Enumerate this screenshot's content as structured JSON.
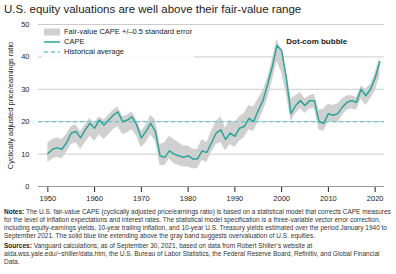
{
  "chart_data": {
    "type": "line",
    "title": "U.S. equity valuations are well above their fair-value range",
    "ylabel": "Cyclically adjusted price/earnings ratio",
    "x": [
      1950,
      1951,
      1952,
      1953,
      1954,
      1955,
      1956,
      1957,
      1958,
      1959,
      1960,
      1961,
      1962,
      1963,
      1964,
      1965,
      1966,
      1967,
      1968,
      1969,
      1970,
      1971,
      1972,
      1973,
      1974,
      1975,
      1976,
      1977,
      1978,
      1979,
      1980,
      1981,
      1982,
      1983,
      1984,
      1985,
      1986,
      1987,
      1988,
      1989,
      1990,
      1991,
      1992,
      1993,
      1994,
      1995,
      1996,
      1997,
      1998,
      1999,
      2000,
      2001,
      2002,
      2003,
      2004,
      2005,
      2006,
      2007,
      2008,
      2009,
      2010,
      2011,
      2012,
      2013,
      2014,
      2015,
      2016,
      2017,
      2018,
      2019,
      2020,
      2021
    ],
    "band": {
      "name": "Fair-value CAPE +/–0.5 standard error",
      "color": "#d0d0d0",
      "lower": [
        7.5,
        8.5,
        9.0,
        8.5,
        10.5,
        13.0,
        13.5,
        11.5,
        13.5,
        15.5,
        14.0,
        16.0,
        14.5,
        16.0,
        17.5,
        18.5,
        16.0,
        16.5,
        17.5,
        15.5,
        12.0,
        13.5,
        16.0,
        14.0,
        6.5,
        6.5,
        8.5,
        7.0,
        6.5,
        6.0,
        6.0,
        5.5,
        5.5,
        8.0,
        7.5,
        10.5,
        13.0,
        13.5,
        11.0,
        13.0,
        12.0,
        14.0,
        15.0,
        17.5,
        17.0,
        20.0,
        23.0,
        27.0,
        32.5,
        38.5,
        35.0,
        28.5,
        20.0,
        22.5,
        24.0,
        22.5,
        24.0,
        24.0,
        17.5,
        17.0,
        20.0,
        20.0,
        19.5,
        22.0,
        23.5,
        24.0,
        23.5,
        27.0,
        25.0,
        27.0,
        29.5,
        34.0
      ],
      "upper": [
        13.5,
        14.5,
        15.0,
        14.5,
        16.0,
        18.5,
        19.0,
        17.0,
        19.0,
        21.0,
        19.5,
        21.5,
        20.5,
        22.0,
        23.5,
        24.5,
        21.5,
        22.0,
        23.0,
        20.5,
        17.0,
        19.0,
        22.0,
        20.5,
        13.0,
        13.5,
        15.5,
        14.5,
        13.5,
        12.5,
        12.5,
        11.5,
        11.5,
        14.5,
        13.5,
        17.0,
        20.0,
        21.5,
        18.0,
        20.5,
        19.5,
        21.5,
        22.5,
        25.0,
        24.5,
        27.0,
        29.5,
        33.5,
        39.0,
        45.5,
        41.5,
        35.5,
        27.0,
        28.0,
        29.0,
        27.0,
        28.0,
        28.5,
        23.5,
        24.0,
        25.5,
        25.0,
        25.5,
        27.0,
        28.0,
        28.0,
        27.5,
        31.0,
        30.0,
        31.5,
        35.0,
        40.0
      ]
    },
    "series": [
      {
        "name": "CAPE",
        "color": "#2aa596",
        "values": [
          10.2,
          11.5,
          12.0,
          11.5,
          13.5,
          16.5,
          17.0,
          15.0,
          17.5,
          19.5,
          18.0,
          20.5,
          19.0,
          20.5,
          22.0,
          23.0,
          20.0,
          20.5,
          21.5,
          19.0,
          15.0,
          17.0,
          19.5,
          17.0,
          9.5,
          9.0,
          11.0,
          10.0,
          9.5,
          9.0,
          9.5,
          8.5,
          8.5,
          11.0,
          10.5,
          13.5,
          16.5,
          17.5,
          14.5,
          16.5,
          15.5,
          18.0,
          18.5,
          21.0,
          20.0,
          23.5,
          26.5,
          31.5,
          37.0,
          43.5,
          42.0,
          33.5,
          22.5,
          25.0,
          26.5,
          25.0,
          26.5,
          26.5,
          20.0,
          19.5,
          22.5,
          22.0,
          22.5,
          24.5,
          26.0,
          26.5,
          26.0,
          30.0,
          28.0,
          30.0,
          33.5,
          38.5
        ]
      }
    ],
    "reference_lines": [
      {
        "name": "Historical average",
        "value": 20.0,
        "color": "#6ec6cc",
        "line_style": "dashed"
      }
    ],
    "annotations": [
      {
        "text": "Dot-com bubble",
        "x": 2001,
        "y": 44
      }
    ],
    "notes": [
      {
        "label": "Notes:",
        "text": "The U.S. fair-value CAPE (cyclically adjusted price/earnings ratio) is based on a statistical model that corrects CAPE measures for the level of inflation expectations and interest rates. The statistical model specification is a three-variable vector error correction, including equity-earnings yields, 10-year trailing inflation, and 10-year U.S. Treasury yields estimated over the period January 1940 to September 2021. The solid blue line extending above the gray band suggests overvaluation of U.S. equities."
      },
      {
        "label": "Sources:",
        "text": "Vanguard calculations, as of September 30, 2021, based on data from Robert Shiller’s website at aida.wss.yale.edu/~shiller/data.htm, the U.S. Bureau of Labor Statistics, the Federal Reserve Board, Refinitiv, and Global Financial Data."
      }
    ],
    "xlim": [
      1948,
      2022
    ],
    "xticks": [
      1950,
      1960,
      1970,
      1980,
      1990,
      2000,
      2010,
      2020
    ],
    "ylim": [
      0,
      50
    ],
    "yticks": [
      0,
      10,
      20,
      30,
      40,
      50
    ],
    "grid": true,
    "legend": "upper left"
  }
}
